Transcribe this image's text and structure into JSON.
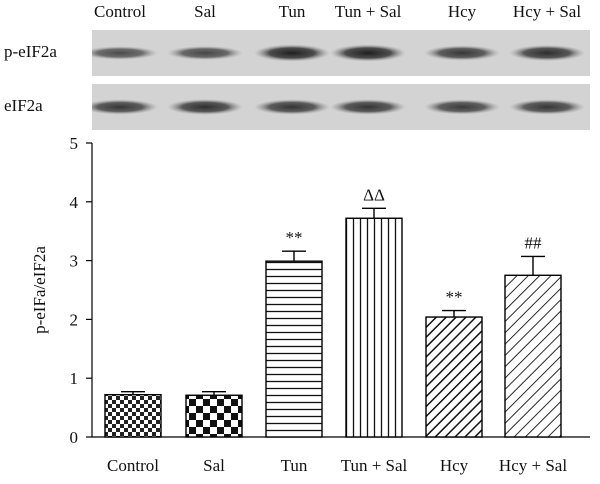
{
  "blot": {
    "lanes": [
      "Control",
      "Sal",
      "Tun",
      "Tun + Sal",
      "Hcy",
      "Hcy + Sal"
    ],
    "rows": [
      {
        "label": "p-eIF2a",
        "band_intensity": [
          0.55,
          0.6,
          0.9,
          0.9,
          0.72,
          0.8
        ]
      },
      {
        "label": "eIF2a",
        "band_intensity": [
          0.72,
          0.78,
          0.74,
          0.74,
          0.7,
          0.72
        ]
      }
    ]
  },
  "chart_data": {
    "type": "bar",
    "categories": [
      "Control",
      "Sal",
      "Tun",
      "Tun + Sal",
      "Hcy",
      "Hcy + Sal"
    ],
    "values": [
      0.72,
      0.71,
      2.99,
      3.72,
      2.04,
      2.75
    ],
    "errors": [
      0.05,
      0.06,
      0.17,
      0.17,
      0.11,
      0.32
    ],
    "annotations": [
      "",
      "",
      "**",
      "ΔΔ",
      "**",
      "##"
    ],
    "patterns": [
      "small-checker",
      "large-checker",
      "horizontal-lines",
      "vertical-lines",
      "diagonal-dense",
      "diagonal-sparse"
    ],
    "title": "",
    "xlabel": "",
    "ylabel": "p-eIFa/eIF2a",
    "ylim": [
      0,
      5
    ],
    "yticks": [
      0,
      1,
      2,
      3,
      4,
      5
    ],
    "grid": false,
    "legend": "none"
  }
}
